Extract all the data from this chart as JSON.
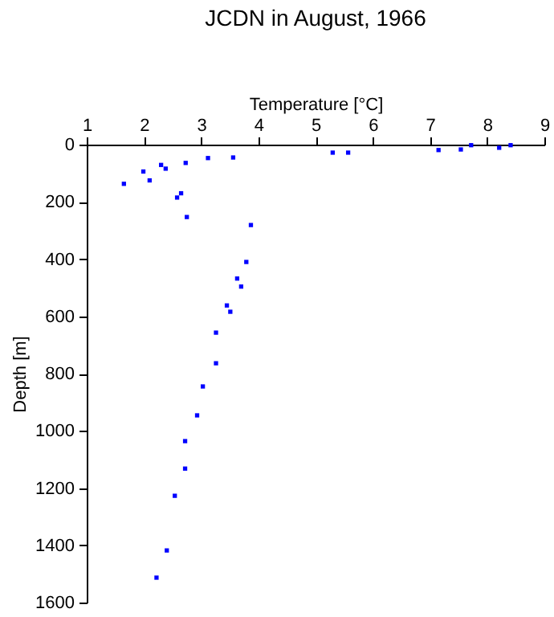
{
  "chart_data": {
    "type": "scatter",
    "title": "JCDN in August, 1966",
    "xlabel": "Temperature [°C]",
    "ylabel": "Depth [m]",
    "x": [
      1.65,
      1.99,
      2.1,
      2.3,
      2.38,
      2.58,
      2.65,
      2.73,
      2.75,
      3.12,
      3.56,
      3.87,
      5.3,
      5.57,
      7.15,
      7.54,
      7.72,
      8.21,
      8.41,
      3.79,
      3.63,
      3.7,
      3.45,
      3.51,
      3.26,
      3.26,
      3.03,
      2.93,
      2.72,
      2.72,
      2.54,
      2.4,
      2.22
    ],
    "series": [
      {
        "color": "#0000ff",
        "values": [
          137,
          94,
          125,
          71,
          84,
          185,
          170,
          64,
          253,
          47,
          45,
          281,
          28,
          28,
          19,
          17,
          2,
          11,
          2,
          410,
          468,
          496,
          562,
          584,
          657,
          764,
          845,
          946,
          1036,
          1132,
          1227,
          1418,
          1513
        ]
      }
    ],
    "xlim": [
      1,
      9
    ],
    "xticks": [
      1,
      2,
      3,
      4,
      5,
      6,
      7,
      8,
      9
    ],
    "ylim": [
      1600,
      0
    ],
    "yticks": [
      0,
      200,
      400,
      600,
      800,
      1000,
      1200,
      1400,
      1600
    ],
    "marker": "square",
    "grid": false
  }
}
